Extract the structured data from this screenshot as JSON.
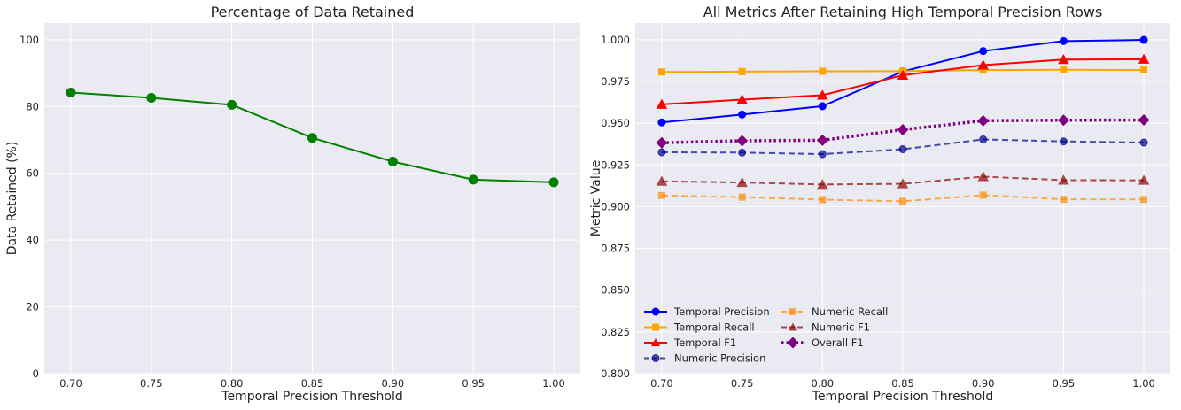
{
  "chart_data": [
    {
      "type": "line",
      "title": "Percentage of Data Retained",
      "xlabel": "Temporal Precision Threshold",
      "ylabel": "Data Retained (%)",
      "x": [
        0.7,
        0.75,
        0.8,
        0.85,
        0.9,
        0.95,
        1.0
      ],
      "x_ticks": [
        "0.70",
        "0.75",
        "0.80",
        "0.85",
        "0.90",
        "0.95",
        "1.00"
      ],
      "xlim": [
        0.6835,
        1.0165
      ],
      "ylim": [
        0,
        105
      ],
      "y_ticks": [
        "0",
        "20",
        "40",
        "60",
        "80",
        "100"
      ],
      "grid": true,
      "series": [
        {
          "name": "Data Retained",
          "color": "#008000",
          "marker": "circle",
          "dash": "solid",
          "values": [
            84.2,
            82.6,
            80.5,
            70.6,
            63.5,
            58.1,
            57.3
          ]
        }
      ]
    },
    {
      "type": "line",
      "title": "All Metrics After Retaining High Temporal Precision Rows",
      "xlabel": "Temporal Precision Threshold",
      "ylabel": "Metric Value",
      "x": [
        0.7,
        0.75,
        0.8,
        0.85,
        0.9,
        0.95,
        1.0
      ],
      "x_ticks": [
        "0.70",
        "0.75",
        "0.80",
        "0.85",
        "0.90",
        "0.95",
        "1.00"
      ],
      "xlim": [
        0.6835,
        1.0165
      ],
      "ylim": [
        0.8,
        1.01
      ],
      "y_ticks": [
        "0.800",
        "0.825",
        "0.850",
        "0.875",
        "0.900",
        "0.925",
        "0.950",
        "0.975",
        "1.000"
      ],
      "grid": true,
      "legend_position": "lower-left",
      "series": [
        {
          "name": "Temporal Precision",
          "color": "#0000ff",
          "marker": "circle",
          "dash": "solid",
          "values": [
            0.9505,
            0.9552,
            0.9602,
            0.981,
            0.9932,
            0.9992,
            0.9999
          ]
        },
        {
          "name": "Temporal Recall",
          "color": "#ffa500",
          "marker": "square",
          "dash": "solid",
          "values": [
            0.9807,
            0.9809,
            0.9811,
            0.9812,
            0.9818,
            0.982,
            0.9819
          ]
        },
        {
          "name": "Temporal F1",
          "color": "#ff0000",
          "marker": "triangle",
          "dash": "solid",
          "values": [
            0.9613,
            0.9641,
            0.9668,
            0.9787,
            0.9848,
            0.9881,
            0.9883
          ]
        },
        {
          "name": "Numeric Precision",
          "color": "#00008b",
          "marker": "circle",
          "dash": "dashed",
          "opacity": 0.7,
          "values": [
            0.9326,
            0.9324,
            0.9315,
            0.9344,
            0.9403,
            0.9391,
            0.9384
          ]
        },
        {
          "name": "Numeric Recall",
          "color": "#ff8c00",
          "marker": "square",
          "dash": "dashed",
          "opacity": 0.7,
          "values": [
            0.9067,
            0.9057,
            0.9042,
            0.9032,
            0.9069,
            0.9044,
            0.9043
          ]
        },
        {
          "name": "Numeric F1",
          "color": "#8b0000",
          "marker": "triangle",
          "dash": "dashed",
          "opacity": 0.7,
          "values": [
            0.9152,
            0.9145,
            0.9133,
            0.9137,
            0.918,
            0.9159,
            0.9158
          ]
        },
        {
          "name": "Overall F1",
          "color": "#800080",
          "marker": "diamond",
          "dash": "dotted",
          "values": [
            0.9383,
            0.9395,
            0.9398,
            0.9461,
            0.9515,
            0.9518,
            0.9519
          ]
        }
      ]
    }
  ]
}
